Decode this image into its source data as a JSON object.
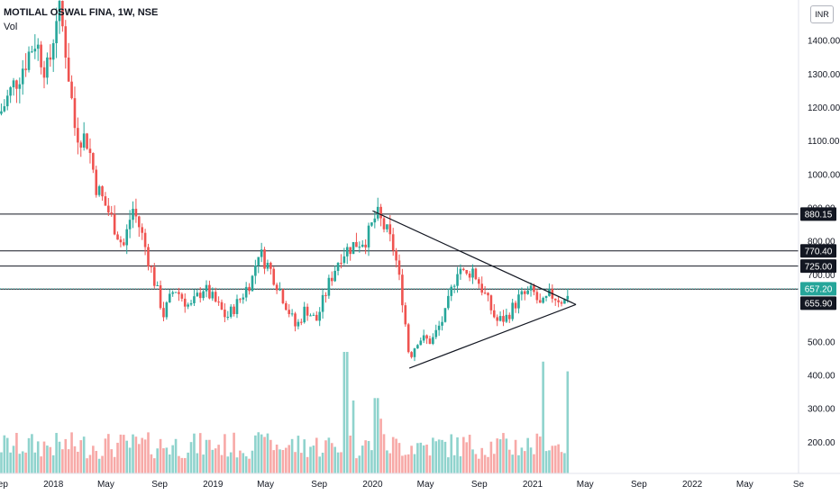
{
  "header": {
    "title": "MOTILAL OSWAL FINA, 1W, NSE",
    "volume_label": "Vol",
    "currency": "INR"
  },
  "colors": {
    "up": "#26a69a",
    "down": "#ef5350",
    "up_volume": "#8fd3cd",
    "down_volume": "#f7a9a7",
    "level_line": "#131722",
    "last_price": "#26a69a",
    "axis_text": "#131722",
    "background": "#ffffff"
  },
  "chart_data": {
    "type": "candlestick",
    "title": "MOTILAL OSWAL FINA, 1W, NSE",
    "ylim": [
      100,
      1520
    ],
    "y_ticks": [
      "1400.00",
      "1300.00",
      "1200.00",
      "1100.00",
      "1000.00",
      "900.00",
      "800.00",
      "700.00",
      "500.00",
      "400.00",
      "300.00",
      "200.00"
    ],
    "y_tick_values": [
      1400,
      1300,
      1200,
      1100,
      1000,
      900,
      800,
      700,
      500,
      400,
      300,
      200
    ],
    "x_ticks": [
      {
        "label": "Sep",
        "date": "2017-09-01"
      },
      {
        "label": "2018",
        "date": "2018-01-01"
      },
      {
        "label": "May",
        "date": "2018-05-01"
      },
      {
        "label": "Sep",
        "date": "2018-09-01"
      },
      {
        "label": "2019",
        "date": "2019-01-01"
      },
      {
        "label": "May",
        "date": "2019-05-01"
      },
      {
        "label": "Sep",
        "date": "2019-09-01"
      },
      {
        "label": "2020",
        "date": "2020-01-01"
      },
      {
        "label": "May",
        "date": "2020-05-01"
      },
      {
        "label": "Sep",
        "date": "2020-09-01"
      },
      {
        "label": "2021",
        "date": "2021-01-01"
      },
      {
        "label": "May",
        "date": "2021-05-01"
      },
      {
        "label": "Sep",
        "date": "2021-09-01"
      },
      {
        "label": "2022",
        "date": "2022-01-01"
      },
      {
        "label": "May",
        "date": "2022-05-01"
      },
      {
        "label": "Se",
        "date": "2022-09-01"
      }
    ],
    "start_date": "2017-09-01",
    "price_path": [
      [
        "2017-09-01",
        1180
      ],
      [
        "2017-10-15",
        1300
      ],
      [
        "2017-11-20",
        1400
      ],
      [
        "2017-12-20",
        1300
      ],
      [
        "2018-01-10",
        1500
      ],
      [
        "2018-01-25",
        1420
      ],
      [
        "2018-02-20",
        1130
      ],
      [
        "2018-03-20",
        1100
      ],
      [
        "2018-04-10",
        960
      ],
      [
        "2018-05-10",
        880
      ],
      [
        "2018-06-10",
        780
      ],
      [
        "2018-07-01",
        900
      ],
      [
        "2018-07-20",
        830
      ],
      [
        "2018-08-20",
        680
      ],
      [
        "2018-09-10",
        580
      ],
      [
        "2018-10-05",
        660
      ],
      [
        "2018-11-10",
        600
      ],
      [
        "2018-12-10",
        660
      ],
      [
        "2019-01-05",
        620
      ],
      [
        "2019-02-01",
        570
      ],
      [
        "2019-03-01",
        620
      ],
      [
        "2019-04-01",
        690
      ],
      [
        "2019-04-15",
        770
      ],
      [
        "2019-05-10",
        720
      ],
      [
        "2019-06-01",
        660
      ],
      [
        "2019-07-10",
        540
      ],
      [
        "2019-08-01",
        600
      ],
      [
        "2019-08-25",
        560
      ],
      [
        "2019-09-25",
        680
      ],
      [
        "2019-10-20",
        760
      ],
      [
        "2019-11-20",
        790
      ],
      [
        "2019-12-20",
        810
      ],
      [
        "2020-01-10",
        880
      ],
      [
        "2020-02-01",
        830
      ],
      [
        "2020-02-20",
        770
      ],
      [
        "2020-03-10",
        620
      ],
      [
        "2020-03-25",
        450
      ],
      [
        "2020-04-15",
        510
      ],
      [
        "2020-05-15",
        500
      ],
      [
        "2020-06-15",
        580
      ],
      [
        "2020-07-15",
        730
      ],
      [
        "2020-08-01",
        690
      ],
      [
        "2020-08-15",
        720
      ],
      [
        "2020-09-10",
        650
      ],
      [
        "2020-10-10",
        560
      ],
      [
        "2020-11-01",
        570
      ],
      [
        "2020-12-01",
        630
      ],
      [
        "2021-01-01",
        650
      ],
      [
        "2021-01-20",
        600
      ],
      [
        "2021-02-10",
        640
      ],
      [
        "2021-02-26",
        630
      ],
      [
        "2021-03-15",
        620
      ],
      [
        "2021-03-25",
        657
      ]
    ],
    "volume_spikes": [
      [
        "2019-11-01",
        1.0
      ],
      [
        "2019-11-20",
        0.6
      ],
      [
        "2020-01-10",
        0.62
      ],
      [
        "2021-01-25",
        0.92
      ],
      [
        "2021-03-25",
        0.84
      ],
      [
        "2020-01-20",
        0.45
      ],
      [
        "2019-05-01",
        0.3
      ]
    ],
    "horizontal_levels": [
      {
        "value": 880.15,
        "label": "880.15"
      },
      {
        "value": 770.4,
        "label": "770.40"
      },
      {
        "value": 725.0,
        "label": "725.00"
      },
      {
        "value": 655.9,
        "label": "655.90"
      }
    ],
    "last_price": {
      "value": 657.2,
      "label": "657.20"
    },
    "triangle": {
      "upper": [
        {
          "date": "2020-01-01",
          "value": 890
        },
        {
          "date": "2021-04-10",
          "value": 610
        }
      ],
      "lower": [
        {
          "date": "2020-03-25",
          "value": 420
        },
        {
          "date": "2021-04-10",
          "value": 610
        }
      ]
    },
    "grid": false,
    "legend": "none"
  }
}
